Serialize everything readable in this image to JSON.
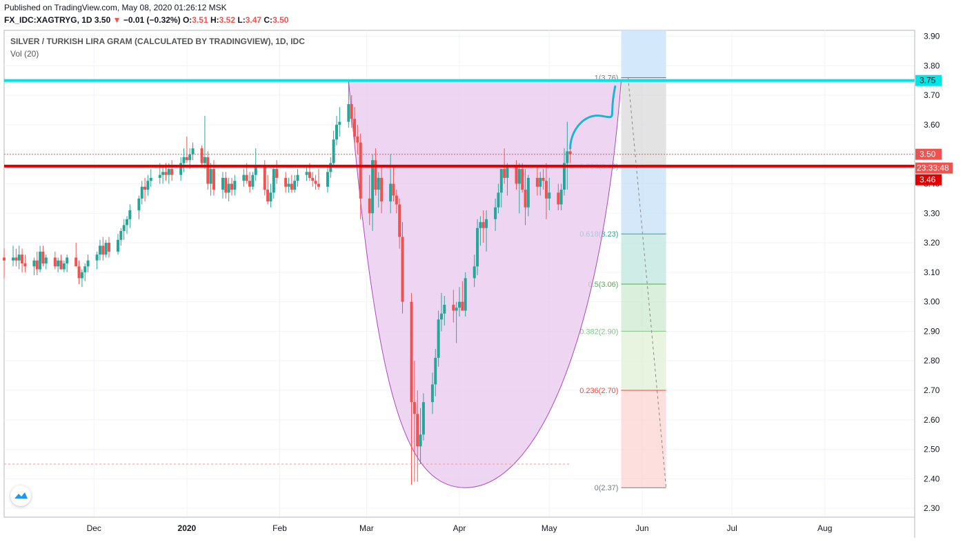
{
  "header": {
    "published": "Published on TradingView.com, May 08, 2020 01:26:12 MSK",
    "symbol": "FX_IDC:XAGTRYG, 1D",
    "last": "3.50",
    "change_arrow": "▼",
    "change": "−0.01 (−0.32%)",
    "o_label": "O:",
    "o_value": "3.51",
    "h_label": "H:",
    "h_value": "3.52",
    "l_label": "L:",
    "l_value": "3.47",
    "c_label": "C:",
    "c_value": "3.50"
  },
  "overlay": {
    "title": "SILVER / TURKISH LIRA GRAM (CALCULATED BY TRADINGVIEW), 1D, IDC",
    "volume": "Vol (20)"
  },
  "colors": {
    "up": "#26a69a",
    "down": "#ef5350",
    "resistance": "#00e5e5",
    "support": "#e00000",
    "arc_fill": "#e8c8ee",
    "arc_stroke": "#ab47bc",
    "projection": "#1eb3d6"
  },
  "chart_data": {
    "type": "candlestick",
    "ylim": [
      2.27,
      3.92
    ],
    "y_ticks": [
      "3.90",
      "3.80",
      "3.70",
      "3.60",
      "3.50",
      "3.40",
      "3.30",
      "3.20",
      "3.10",
      "3.00",
      "2.90",
      "2.80",
      "2.70",
      "2.60",
      "2.50",
      "2.40",
      "2.30"
    ],
    "x_labels": [
      {
        "label": "Dec",
        "date": "2019-12-01"
      },
      {
        "label": "2020",
        "date": "2020-01-01"
      },
      {
        "label": "Feb",
        "date": "2020-02-01"
      },
      {
        "label": "Mar",
        "date": "2020-03-01"
      },
      {
        "label": "Apr",
        "date": "2020-04-01"
      },
      {
        "label": "May",
        "date": "2020-05-01"
      },
      {
        "label": "Jun",
        "date": "2020-06-01"
      },
      {
        "label": "Jul",
        "date": "2020-07-01"
      },
      {
        "label": "Aug",
        "date": "2020-08-01"
      }
    ],
    "x_range": [
      "2019-11-01",
      "2020-08-31"
    ],
    "price_labels": {
      "resistance": "3.75",
      "last": "3.50",
      "countdown": "23:33:48",
      "support": "3.46"
    },
    "levels": {
      "resistance": 3.75,
      "support": 3.46,
      "last": 3.5,
      "lower_dashed": 2.45
    },
    "fib_levels": [
      {
        "ratio": "1",
        "value": 3.76,
        "label": "1(3.76)"
      },
      {
        "ratio": "0.786",
        "value": 3.46,
        "label": "0.786(3.46)"
      },
      {
        "ratio": "0.618",
        "value": 3.23,
        "label": "0.618(3.23)"
      },
      {
        "ratio": "0.5",
        "value": 3.06,
        "label": "0.5(3.06)"
      },
      {
        "ratio": "0.382",
        "value": 2.9,
        "label": "0.382(2.90)"
      },
      {
        "ratio": "0.236",
        "value": 2.7,
        "label": "0.236(2.70)"
      },
      {
        "ratio": "0",
        "value": 2.37,
        "label": "0(2.37)"
      }
    ],
    "candles": [
      {
        "x": "2019-11-01",
        "o": 3.15,
        "h": 3.18,
        "l": 3.08,
        "c": 3.14
      },
      {
        "x": "2019-11-04",
        "o": 3.14,
        "h": 3.19,
        "l": 3.12,
        "c": 3.15
      },
      {
        "x": "2019-11-05",
        "o": 3.15,
        "h": 3.18,
        "l": 3.12,
        "c": 3.14
      },
      {
        "x": "2019-11-06",
        "o": 3.14,
        "h": 3.19,
        "l": 3.11,
        "c": 3.16
      },
      {
        "x": "2019-11-07",
        "o": 3.16,
        "h": 3.18,
        "l": 3.1,
        "c": 3.13
      },
      {
        "x": "2019-11-08",
        "o": 3.13,
        "h": 3.16,
        "l": 3.1,
        "c": 3.12
      },
      {
        "x": "2019-11-11",
        "o": 3.12,
        "h": 3.15,
        "l": 3.09,
        "c": 3.14
      },
      {
        "x": "2019-11-12",
        "o": 3.14,
        "h": 3.17,
        "l": 3.09,
        "c": 3.11
      },
      {
        "x": "2019-11-13",
        "o": 3.11,
        "h": 3.19,
        "l": 3.1,
        "c": 3.17
      },
      {
        "x": "2019-11-14",
        "o": 3.17,
        "h": 3.19,
        "l": 3.12,
        "c": 3.13
      },
      {
        "x": "2019-11-15",
        "o": 3.13,
        "h": 3.16,
        "l": 3.11,
        "c": 3.15
      },
      {
        "x": "2019-11-18",
        "o": 3.15,
        "h": 3.17,
        "l": 3.11,
        "c": 3.12
      },
      {
        "x": "2019-11-19",
        "o": 3.12,
        "h": 3.15,
        "l": 3.1,
        "c": 3.14
      },
      {
        "x": "2019-11-20",
        "o": 3.14,
        "h": 3.16,
        "l": 3.11,
        "c": 3.11
      },
      {
        "x": "2019-11-21",
        "o": 3.11,
        "h": 3.14,
        "l": 3.1,
        "c": 3.13
      },
      {
        "x": "2019-11-22",
        "o": 3.13,
        "h": 3.16,
        "l": 3.1,
        "c": 3.15
      },
      {
        "x": "2019-11-25",
        "o": 3.15,
        "h": 3.2,
        "l": 3.12,
        "c": 3.12
      },
      {
        "x": "2019-11-26",
        "o": 3.12,
        "h": 3.14,
        "l": 3.06,
        "c": 3.08
      },
      {
        "x": "2019-11-27",
        "o": 3.08,
        "h": 3.11,
        "l": 3.05,
        "c": 3.1
      },
      {
        "x": "2019-11-28",
        "o": 3.1,
        "h": 3.13,
        "l": 3.07,
        "c": 3.12
      },
      {
        "x": "2019-11-29",
        "o": 3.12,
        "h": 3.16,
        "l": 3.1,
        "c": 3.14
      },
      {
        "x": "2019-12-02",
        "o": 3.14,
        "h": 3.17,
        "l": 3.11,
        "c": 3.16
      },
      {
        "x": "2019-12-03",
        "o": 3.16,
        "h": 3.21,
        "l": 3.14,
        "c": 3.19
      },
      {
        "x": "2019-12-04",
        "o": 3.19,
        "h": 3.22,
        "l": 3.14,
        "c": 3.16
      },
      {
        "x": "2019-12-05",
        "o": 3.16,
        "h": 3.21,
        "l": 3.15,
        "c": 3.2
      },
      {
        "x": "2019-12-06",
        "o": 3.2,
        "h": 3.22,
        "l": 3.15,
        "c": 3.17
      },
      {
        "x": "2019-12-09",
        "o": 3.17,
        "h": 3.23,
        "l": 3.16,
        "c": 3.21
      },
      {
        "x": "2019-12-10",
        "o": 3.21,
        "h": 3.25,
        "l": 3.19,
        "c": 3.24
      },
      {
        "x": "2019-12-11",
        "o": 3.24,
        "h": 3.28,
        "l": 3.21,
        "c": 3.26
      },
      {
        "x": "2019-12-12",
        "o": 3.26,
        "h": 3.29,
        "l": 3.23,
        "c": 3.28
      },
      {
        "x": "2019-12-13",
        "o": 3.28,
        "h": 3.33,
        "l": 3.25,
        "c": 3.31
      },
      {
        "x": "2019-12-16",
        "o": 3.31,
        "h": 3.36,
        "l": 3.28,
        "c": 3.35
      },
      {
        "x": "2019-12-17",
        "o": 3.35,
        "h": 3.41,
        "l": 3.33,
        "c": 3.39
      },
      {
        "x": "2019-12-18",
        "o": 3.39,
        "h": 3.42,
        "l": 3.34,
        "c": 3.38
      },
      {
        "x": "2019-12-19",
        "o": 3.38,
        "h": 3.43,
        "l": 3.36,
        "c": 3.41
      },
      {
        "x": "2019-12-20",
        "o": 3.41,
        "h": 3.45,
        "l": 3.39,
        "c": 3.42
      },
      {
        "x": "2019-12-23",
        "o": 3.42,
        "h": 3.47,
        "l": 3.4,
        "c": 3.43
      },
      {
        "x": "2019-12-24",
        "o": 3.43,
        "h": 3.46,
        "l": 3.4,
        "c": 3.44
      },
      {
        "x": "2019-12-25",
        "o": 3.44,
        "h": 3.47,
        "l": 3.41,
        "c": 3.43
      },
      {
        "x": "2019-12-26",
        "o": 3.43,
        "h": 3.47,
        "l": 3.4,
        "c": 3.45
      },
      {
        "x": "2019-12-27",
        "o": 3.45,
        "h": 3.48,
        "l": 3.41,
        "c": 3.43
      },
      {
        "x": "2019-12-30",
        "o": 3.43,
        "h": 3.49,
        "l": 3.41,
        "c": 3.47
      },
      {
        "x": "2019-12-31",
        "o": 3.47,
        "h": 3.52,
        "l": 3.44,
        "c": 3.49
      },
      {
        "x": "2020-01-01",
        "o": 3.49,
        "h": 3.56,
        "l": 3.47,
        "c": 3.48
      },
      {
        "x": "2020-01-02",
        "o": 3.48,
        "h": 3.52,
        "l": 3.45,
        "c": 3.5
      },
      {
        "x": "2020-01-03",
        "o": 3.5,
        "h": 3.54,
        "l": 3.48,
        "c": 3.52
      },
      {
        "x": "2020-01-06",
        "o": 3.52,
        "h": 3.53,
        "l": 3.46,
        "c": 3.47
      },
      {
        "x": "2020-01-07",
        "o": 3.47,
        "h": 3.63,
        "l": 3.45,
        "c": 3.49
      },
      {
        "x": "2020-01-08",
        "o": 3.49,
        "h": 3.51,
        "l": 3.38,
        "c": 3.4
      },
      {
        "x": "2020-01-09",
        "o": 3.4,
        "h": 3.47,
        "l": 3.36,
        "c": 3.45
      },
      {
        "x": "2020-01-10",
        "o": 3.45,
        "h": 3.48,
        "l": 3.36,
        "c": 3.38
      },
      {
        "x": "2020-01-13",
        "o": 3.38,
        "h": 3.44,
        "l": 3.35,
        "c": 3.42
      },
      {
        "x": "2020-01-14",
        "o": 3.42,
        "h": 3.44,
        "l": 3.35,
        "c": 3.37
      },
      {
        "x": "2020-01-15",
        "o": 3.37,
        "h": 3.42,
        "l": 3.34,
        "c": 3.4
      },
      {
        "x": "2020-01-16",
        "o": 3.4,
        "h": 3.42,
        "l": 3.36,
        "c": 3.38
      },
      {
        "x": "2020-01-17",
        "o": 3.38,
        "h": 3.43,
        "l": 3.36,
        "c": 3.41
      },
      {
        "x": "2020-01-20",
        "o": 3.41,
        "h": 3.45,
        "l": 3.39,
        "c": 3.43
      },
      {
        "x": "2020-01-21",
        "o": 3.43,
        "h": 3.47,
        "l": 3.4,
        "c": 3.41
      },
      {
        "x": "2020-01-22",
        "o": 3.41,
        "h": 3.44,
        "l": 3.37,
        "c": 3.39
      },
      {
        "x": "2020-01-23",
        "o": 3.39,
        "h": 3.44,
        "l": 3.38,
        "c": 3.43
      },
      {
        "x": "2020-01-24",
        "o": 3.43,
        "h": 3.52,
        "l": 3.41,
        "c": 3.46
      },
      {
        "x": "2020-01-27",
        "o": 3.46,
        "h": 3.48,
        "l": 3.36,
        "c": 3.38
      },
      {
        "x": "2020-01-28",
        "o": 3.38,
        "h": 3.43,
        "l": 3.33,
        "c": 3.34
      },
      {
        "x": "2020-01-29",
        "o": 3.34,
        "h": 3.4,
        "l": 3.32,
        "c": 3.37
      },
      {
        "x": "2020-01-30",
        "o": 3.37,
        "h": 3.46,
        "l": 3.35,
        "c": 3.45
      },
      {
        "x": "2020-01-31",
        "o": 3.45,
        "h": 3.48,
        "l": 3.4,
        "c": 3.42
      },
      {
        "x": "2020-02-03",
        "o": 3.42,
        "h": 3.44,
        "l": 3.37,
        "c": 3.39
      },
      {
        "x": "2020-02-04",
        "o": 3.39,
        "h": 3.42,
        "l": 3.37,
        "c": 3.4
      },
      {
        "x": "2020-02-05",
        "o": 3.4,
        "h": 3.43,
        "l": 3.37,
        "c": 3.38
      },
      {
        "x": "2020-02-06",
        "o": 3.38,
        "h": 3.43,
        "l": 3.37,
        "c": 3.41
      },
      {
        "x": "2020-02-07",
        "o": 3.41,
        "h": 3.45,
        "l": 3.39,
        "c": 3.43
      },
      {
        "x": "2020-02-10",
        "o": 3.43,
        "h": 3.46,
        "l": 3.41,
        "c": 3.44
      },
      {
        "x": "2020-02-11",
        "o": 3.44,
        "h": 3.47,
        "l": 3.41,
        "c": 3.42
      },
      {
        "x": "2020-02-12",
        "o": 3.42,
        "h": 3.44,
        "l": 3.39,
        "c": 3.41
      },
      {
        "x": "2020-02-13",
        "o": 3.41,
        "h": 3.43,
        "l": 3.38,
        "c": 3.4
      },
      {
        "x": "2020-02-14",
        "o": 3.4,
        "h": 3.45,
        "l": 3.38,
        "c": 3.39
      },
      {
        "x": "2020-02-17",
        "o": 3.39,
        "h": 3.46,
        "l": 3.37,
        "c": 3.44
      },
      {
        "x": "2020-02-18",
        "o": 3.44,
        "h": 3.49,
        "l": 3.42,
        "c": 3.47
      },
      {
        "x": "2020-02-19",
        "o": 3.47,
        "h": 3.58,
        "l": 3.46,
        "c": 3.55
      },
      {
        "x": "2020-02-20",
        "o": 3.55,
        "h": 3.63,
        "l": 3.53,
        "c": 3.6
      },
      {
        "x": "2020-02-21",
        "o": 3.6,
        "h": 3.66,
        "l": 3.56,
        "c": 3.61
      },
      {
        "x": "2020-02-24",
        "o": 3.61,
        "h": 3.75,
        "l": 3.59,
        "c": 3.67
      },
      {
        "x": "2020-02-25",
        "o": 3.67,
        "h": 3.7,
        "l": 3.59,
        "c": 3.62
      },
      {
        "x": "2020-02-26",
        "o": 3.62,
        "h": 3.66,
        "l": 3.53,
        "c": 3.56
      },
      {
        "x": "2020-02-27",
        "o": 3.56,
        "h": 3.6,
        "l": 3.5,
        "c": 3.54
      },
      {
        "x": "2020-02-28",
        "o": 3.54,
        "h": 3.57,
        "l": 3.28,
        "c": 3.35
      },
      {
        "x": "2020-03-02",
        "o": 3.35,
        "h": 3.43,
        "l": 3.26,
        "c": 3.3
      },
      {
        "x": "2020-03-03",
        "o": 3.3,
        "h": 3.5,
        "l": 3.24,
        "c": 3.48
      },
      {
        "x": "2020-03-04",
        "o": 3.48,
        "h": 3.52,
        "l": 3.36,
        "c": 3.38
      },
      {
        "x": "2020-03-05",
        "o": 3.38,
        "h": 3.44,
        "l": 3.32,
        "c": 3.42
      },
      {
        "x": "2020-03-06",
        "o": 3.42,
        "h": 3.46,
        "l": 3.3,
        "c": 3.34
      },
      {
        "x": "2020-03-09",
        "o": 3.34,
        "h": 3.5,
        "l": 3.3,
        "c": 3.4
      },
      {
        "x": "2020-03-10",
        "o": 3.4,
        "h": 3.46,
        "l": 3.34,
        "c": 3.36
      },
      {
        "x": "2020-03-11",
        "o": 3.36,
        "h": 3.38,
        "l": 3.3,
        "c": 3.33
      },
      {
        "x": "2020-03-12",
        "o": 3.33,
        "h": 3.35,
        "l": 3.18,
        "c": 3.22
      },
      {
        "x": "2020-03-13",
        "o": 3.22,
        "h": 3.27,
        "l": 2.96,
        "c": 3.0
      },
      {
        "x": "2020-03-16",
        "o": 3.0,
        "h": 3.03,
        "l": 2.38,
        "c": 2.66
      },
      {
        "x": "2020-03-17",
        "o": 2.66,
        "h": 2.8,
        "l": 2.39,
        "c": 2.62
      },
      {
        "x": "2020-03-18",
        "o": 2.62,
        "h": 2.7,
        "l": 2.39,
        "c": 2.51
      },
      {
        "x": "2020-03-19",
        "o": 2.51,
        "h": 2.64,
        "l": 2.45,
        "c": 2.55
      },
      {
        "x": "2020-03-20",
        "o": 2.55,
        "h": 2.69,
        "l": 2.53,
        "c": 2.66
      },
      {
        "x": "2020-03-23",
        "o": 2.66,
        "h": 2.76,
        "l": 2.62,
        "c": 2.72
      },
      {
        "x": "2020-03-24",
        "o": 2.72,
        "h": 2.84,
        "l": 2.68,
        "c": 2.81
      },
      {
        "x": "2020-03-25",
        "o": 2.81,
        "h": 2.97,
        "l": 2.78,
        "c": 2.94
      },
      {
        "x": "2020-03-26",
        "o": 2.94,
        "h": 3.03,
        "l": 2.9,
        "c": 2.96
      },
      {
        "x": "2020-03-27",
        "o": 2.96,
        "h": 3.02,
        "l": 2.92,
        "c": 2.99
      },
      {
        "x": "2020-03-30",
        "o": 2.99,
        "h": 3.04,
        "l": 2.93,
        "c": 2.97
      },
      {
        "x": "2020-03-31",
        "o": 2.97,
        "h": 3.0,
        "l": 2.86,
        "c": 2.98
      },
      {
        "x": "2020-04-01",
        "o": 2.98,
        "h": 3.05,
        "l": 2.95,
        "c": 3.0
      },
      {
        "x": "2020-04-02",
        "o": 3.0,
        "h": 3.07,
        "l": 2.97,
        "c": 2.97
      },
      {
        "x": "2020-04-03",
        "o": 2.97,
        "h": 3.1,
        "l": 2.95,
        "c": 3.08
      },
      {
        "x": "2020-04-06",
        "o": 3.08,
        "h": 3.16,
        "l": 3.05,
        "c": 3.12
      },
      {
        "x": "2020-04-07",
        "o": 3.12,
        "h": 3.28,
        "l": 3.09,
        "c": 3.25
      },
      {
        "x": "2020-04-08",
        "o": 3.25,
        "h": 3.29,
        "l": 3.19,
        "c": 3.27
      },
      {
        "x": "2020-04-09",
        "o": 3.27,
        "h": 3.31,
        "l": 3.2,
        "c": 3.25
      },
      {
        "x": "2020-04-10",
        "o": 3.25,
        "h": 3.31,
        "l": 3.17,
        "c": 3.28
      },
      {
        "x": "2020-04-13",
        "o": 3.28,
        "h": 3.35,
        "l": 3.24,
        "c": 3.32
      },
      {
        "x": "2020-04-14",
        "o": 3.32,
        "h": 3.4,
        "l": 3.3,
        "c": 3.37
      },
      {
        "x": "2020-04-15",
        "o": 3.37,
        "h": 3.45,
        "l": 3.32,
        "c": 3.45
      },
      {
        "x": "2020-04-16",
        "o": 3.45,
        "h": 3.52,
        "l": 3.4,
        "c": 3.42
      },
      {
        "x": "2020-04-17",
        "o": 3.42,
        "h": 3.47,
        "l": 3.36,
        "c": 3.46
      },
      {
        "x": "2020-04-20",
        "o": 3.46,
        "h": 3.48,
        "l": 3.38,
        "c": 3.4
      },
      {
        "x": "2020-04-21",
        "o": 3.4,
        "h": 3.47,
        "l": 3.3,
        "c": 3.45
      },
      {
        "x": "2020-04-22",
        "o": 3.45,
        "h": 3.47,
        "l": 3.37,
        "c": 3.38
      },
      {
        "x": "2020-04-23",
        "o": 3.38,
        "h": 3.45,
        "l": 3.26,
        "c": 3.32
      },
      {
        "x": "2020-04-24",
        "o": 3.32,
        "h": 3.43,
        "l": 3.29,
        "c": 3.42
      },
      {
        "x": "2020-04-27",
        "o": 3.42,
        "h": 3.46,
        "l": 3.36,
        "c": 3.39
      },
      {
        "x": "2020-04-28",
        "o": 3.39,
        "h": 3.44,
        "l": 3.36,
        "c": 3.42
      },
      {
        "x": "2020-04-29",
        "o": 3.42,
        "h": 3.45,
        "l": 3.38,
        "c": 3.41
      },
      {
        "x": "2020-04-30",
        "o": 3.41,
        "h": 3.47,
        "l": 3.28,
        "c": 3.35
      },
      {
        "x": "2020-05-01",
        "o": 3.35,
        "h": 3.42,
        "l": 3.31,
        "c": 3.37
      },
      {
        "x": "2020-05-04",
        "o": 3.37,
        "h": 3.4,
        "l": 3.31,
        "c": 3.33
      },
      {
        "x": "2020-05-05",
        "o": 3.33,
        "h": 3.4,
        "l": 3.31,
        "c": 3.38
      },
      {
        "x": "2020-05-06",
        "o": 3.38,
        "h": 3.52,
        "l": 3.36,
        "c": 3.47
      },
      {
        "x": "2020-05-07",
        "o": 3.47,
        "h": 3.61,
        "l": 3.38,
        "c": 3.51
      },
      {
        "x": "2020-05-08",
        "o": 3.51,
        "h": 3.52,
        "l": 3.47,
        "c": 3.5
      }
    ]
  }
}
